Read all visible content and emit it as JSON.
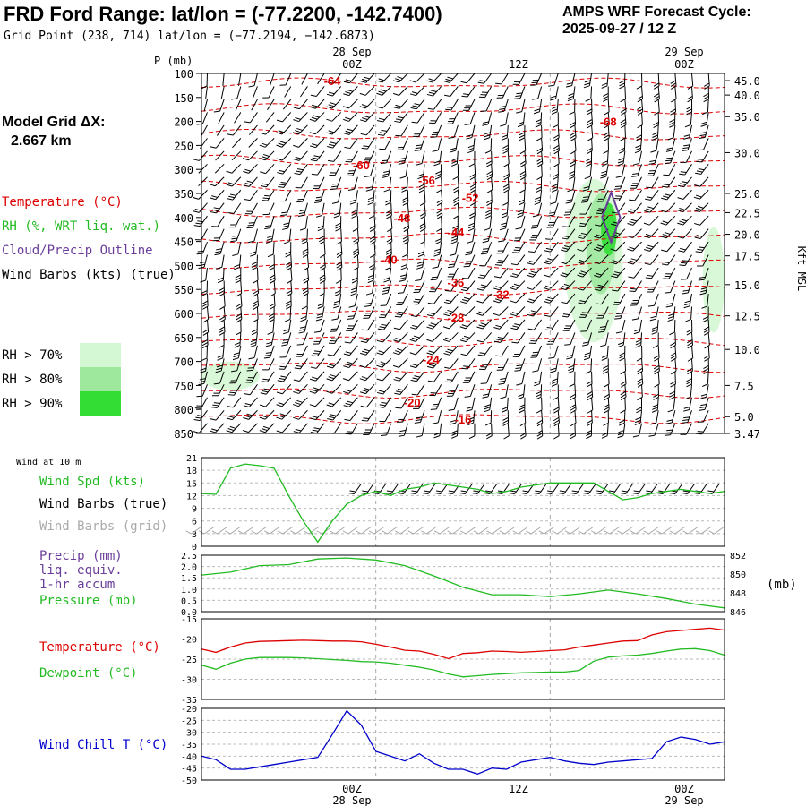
{
  "header": {
    "title": "FRD Ford Range:  lat/lon = (-77.2200, -142.7400)",
    "subtitle": "Grid Point (238, 714) lat/lon = (−77.2194, −142.6873)",
    "cycle_line1": "AMPS WRF Forecast Cycle:",
    "cycle_line2": "2025-09-27 / 12  Z"
  },
  "model_grid": {
    "line1": "Model Grid ΔX:",
    "line2": "2.667 km"
  },
  "legend": {
    "temperature": "Temperature (°C)",
    "rh": "RH (%, WRT liq. wat.)",
    "cloud": "Cloud/Precip Outline",
    "wind": "Wind Barbs (kts) (true)",
    "rh70": "RH > 70%",
    "rh80": "RH > 80%",
    "rh90": "RH > 90%"
  },
  "colors": {
    "temperature": "#dd0000",
    "rh": "#22bb22",
    "cloud": "#6a3d9a",
    "rh70": "#d4f7d4",
    "rh80": "#9ee89e",
    "rh90": "#33dd33",
    "windchill": "#0000cc",
    "grid_barbs": "#aaaaaa"
  },
  "time_axis": {
    "top_dates": [
      "28 Sep",
      "29 Sep"
    ],
    "hours": [
      "00Z",
      "12Z",
      "00Z"
    ],
    "bottom_dates": [
      "28 Sep",
      "29 Sep"
    ]
  },
  "panels": {
    "wind10": {
      "title": "Wind at 10 m",
      "spd": "Wind Spd (kts)",
      "barbs_true": "Wind Barbs (true)",
      "barbs_grid": "Wind Barbs (grid)"
    },
    "precip": {
      "l1": "Precip (mm)",
      "l2": "liq. equiv.",
      "l3": "1-hr accum",
      "l4": "Pressure (mb)",
      "unit": "(mb)"
    },
    "temp": {
      "l1": "Temperature (°C)",
      "l2": "Dewpoint (°C)"
    },
    "chill": {
      "l1": "Wind Chill T (°C)"
    }
  },
  "chart_data": [
    {
      "type": "heatmap",
      "name": "vertical cross-section",
      "ylabel": "P (mb)",
      "yrange": [
        100,
        850
      ],
      "pressure_ticks": [
        "100",
        "150",
        "200",
        "250",
        "300",
        "350",
        "400",
        "450",
        "500",
        "550",
        "600",
        "650",
        "700",
        "750",
        "800",
        "850"
      ],
      "height_ticks": [
        "45.0",
        "40.0",
        "35.0",
        "30.0",
        "25.0",
        "22.5",
        "20.0",
        "17.5",
        "15.0",
        "12.5",
        "10.0",
        "7.5",
        "5.0",
        "3.47"
      ],
      "right_label": "Kft MSL",
      "x_hours": [
        -12,
        24
      ],
      "temperature_labels": [
        {
          "text": "-64",
          "p": 115,
          "t": -3
        },
        {
          "text": "-68",
          "p": 200,
          "t": 16
        },
        {
          "text": "-60",
          "p": 290,
          "t": -1
        },
        {
          "text": "-56",
          "p": 322,
          "t": 3.5
        },
        {
          "text": "-52",
          "p": 358,
          "t": 6.5
        },
        {
          "text": "-48",
          "p": 400,
          "t": 1.8
        },
        {
          "text": "-44",
          "p": 430,
          "t": 5.5
        },
        {
          "text": "-40",
          "p": 487,
          "t": 0.9
        },
        {
          "text": "-36",
          "p": 535,
          "t": 5.5
        },
        {
          "text": "-32",
          "p": 560,
          "t": 8.6
        },
        {
          "text": "-28",
          "p": 608,
          "t": 5.5
        },
        {
          "text": "-24",
          "p": 695,
          "t": 3.8
        },
        {
          "text": "-20",
          "p": 785,
          "t": 2.5
        },
        {
          "text": "-16",
          "p": 820,
          "t": 6.0
        }
      ],
      "rh_regions": [
        {
          "level": 70,
          "hours": [
            13,
            17
          ],
          "p": [
            320,
            660
          ]
        },
        {
          "level": 80,
          "hours": [
            14.5,
            16.5
          ],
          "p": [
            350,
            560
          ]
        },
        {
          "level": 90,
          "hours": [
            15.5,
            16.6
          ],
          "p": [
            370,
            480
          ]
        },
        {
          "level": 70,
          "hours": [
            -12,
            -8
          ],
          "p": [
            700,
            760
          ]
        },
        {
          "level": 70,
          "hours": [
            22.5,
            24
          ],
          "p": [
            420,
            640
          ]
        }
      ]
    },
    {
      "type": "line",
      "name": "10 m wind speed",
      "ylabel": "Wind Spd (kts)",
      "ylim": [
        0,
        21
      ],
      "yticks": [
        "21",
        "18",
        "15",
        "12",
        "9",
        "6",
        "3",
        "0"
      ],
      "x": [
        -12,
        -11,
        -10,
        -9,
        -8,
        -7,
        -6,
        -5,
        -4,
        -3,
        -2,
        -1,
        0,
        1,
        2,
        3,
        4,
        5,
        6,
        7,
        8,
        9,
        10,
        11,
        12,
        13,
        14,
        15,
        16,
        17,
        18,
        19,
        20,
        21,
        22,
        23,
        24
      ],
      "series": [
        {
          "name": "Wind Spd (kts)",
          "values": [
            12.5,
            12.3,
            18.5,
            19.5,
            19.1,
            18.5,
            12,
            6,
            1,
            6,
            10,
            12,
            13,
            12,
            13.5,
            14,
            15,
            14.5,
            14,
            13.5,
            12.5,
            13,
            14,
            14.5,
            15,
            15,
            15,
            15,
            13,
            11,
            11.5,
            12.5,
            13,
            13.5,
            13,
            12.5,
            13
          ]
        }
      ]
    },
    {
      "type": "line",
      "name": "Pressure",
      "ylabel": "Pressure (mb)",
      "ylim_left": [
        0,
        2.5
      ],
      "yticks_left": [
        "2.5",
        "2.0",
        "1.5",
        "1.0",
        "0.5",
        "0.0"
      ],
      "ylim_right": [
        846,
        852
      ],
      "yticks_right": [
        "852",
        "850",
        "848",
        "846"
      ],
      "x": [
        -12,
        -10,
        -8,
        -6,
        -4,
        -2,
        0,
        2,
        4,
        6,
        8,
        10,
        12,
        14,
        16,
        18,
        20,
        22,
        24
      ],
      "series": [
        {
          "name": "Pressure (mb)",
          "values": [
            849.9,
            850.2,
            850.9,
            851.0,
            851.6,
            851.7,
            851.5,
            850.9,
            849.8,
            848.6,
            847.8,
            847.8,
            847.6,
            847.9,
            848.3,
            847.9,
            847.4,
            846.8,
            846.4
          ]
        }
      ]
    },
    {
      "type": "line",
      "name": "Temperature and dewpoint",
      "ylim": [
        -35,
        -15
      ],
      "yticks": [
        "-15",
        "-20",
        "-25",
        "-30",
        "-35"
      ],
      "x": [
        -12,
        -11,
        -10,
        -9,
        -8,
        -7,
        -6,
        -5,
        -4,
        -3,
        -2,
        -1,
        0,
        1,
        2,
        3,
        4,
        5,
        6,
        7,
        8,
        9,
        10,
        11,
        12,
        13,
        14,
        15,
        16,
        17,
        18,
        19,
        20,
        21,
        22,
        23,
        24
      ],
      "series": [
        {
          "name": "Temperature (°C)",
          "values": [
            -22.5,
            -23.3,
            -22.0,
            -21.0,
            -20.6,
            -20.5,
            -20.4,
            -20.3,
            -20.4,
            -20.5,
            -20.5,
            -20.7,
            -21.3,
            -22.0,
            -22.8,
            -23.0,
            -23.8,
            -24.9,
            -23.6,
            -23.4,
            -23.0,
            -23.1,
            -23.3,
            -23.1,
            -22.9,
            -22.7,
            -22.0,
            -21.5,
            -21.0,
            -20.5,
            -20.4,
            -19.0,
            -18.2,
            -17.9,
            -17.6,
            -17.3,
            -17.8
          ]
        },
        {
          "name": "Dewpoint (°C)",
          "values": [
            -26.5,
            -27.5,
            -26.0,
            -25.0,
            -24.6,
            -24.6,
            -24.6,
            -24.7,
            -24.9,
            -25.1,
            -25.3,
            -25.6,
            -25.7,
            -26.0,
            -26.5,
            -27.0,
            -27.7,
            -28.7,
            -29.4,
            -29.1,
            -28.8,
            -28.6,
            -28.4,
            -28.3,
            -28.2,
            -28.2,
            -27.8,
            -25.5,
            -24.5,
            -24.2,
            -24.0,
            -23.6,
            -23.0,
            -22.5,
            -22.4,
            -22.9,
            -24.0
          ]
        }
      ]
    },
    {
      "type": "line",
      "name": "Wind chill",
      "ylim": [
        -50,
        -20
      ],
      "yticks": [
        "-20",
        "-25",
        "-30",
        "-35",
        "-40",
        "-45",
        "-50"
      ],
      "x": [
        -12,
        -11,
        -10,
        -9,
        -8,
        -7,
        -6,
        -5,
        -4,
        -3,
        -2,
        -1,
        0,
        1,
        2,
        3,
        4,
        5,
        6,
        7,
        8,
        9,
        10,
        11,
        12,
        13,
        14,
        15,
        16,
        17,
        18,
        19,
        20,
        21,
        22,
        23,
        24
      ],
      "series": [
        {
          "name": "Wind Chill T (°C)",
          "values": [
            -40,
            -41.5,
            -45.5,
            -45.5,
            -44.5,
            -43.5,
            -42.5,
            -41.5,
            -40.5,
            -31,
            -21,
            -27,
            -38,
            -40,
            -42,
            -39,
            -43,
            -45.5,
            -45.5,
            -47.5,
            -45,
            -45.5,
            -42.5,
            -41.5,
            -40.5,
            -42,
            -43,
            -43.5,
            -42.5,
            -42,
            -41.5,
            -41,
            -34,
            -32,
            -33,
            -35,
            -34
          ]
        }
      ]
    }
  ]
}
